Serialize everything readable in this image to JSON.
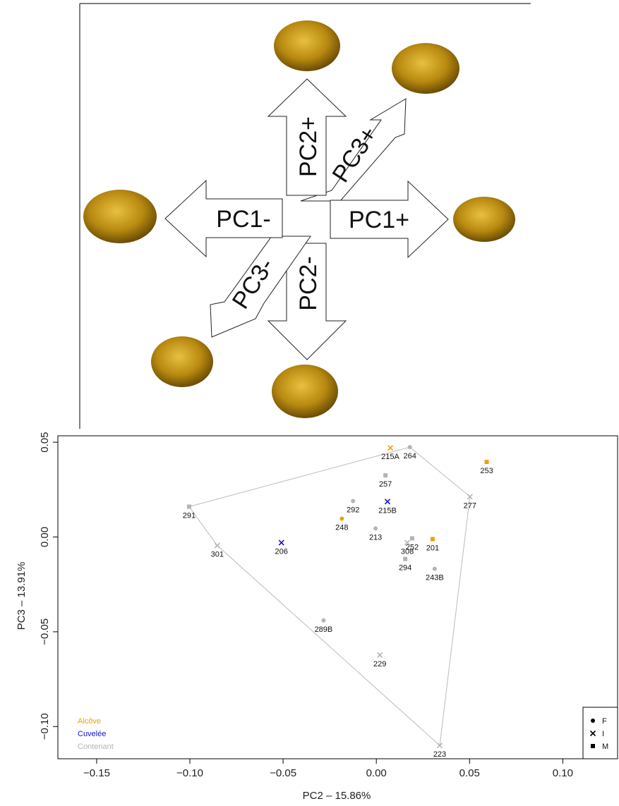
{
  "diagram": {
    "arrows": [
      "PC2+",
      "PC3+",
      "PC1-",
      "PC1+",
      "PC3-",
      "PC2-"
    ]
  },
  "chart_data": {
    "type": "scatter",
    "x_label": "PC2 – 15.86%",
    "y_label": "PC3 – 13.91%",
    "xlim": [
      -0.1708,
      0.1294
    ],
    "ylim": [
      -0.117,
      0.0534
    ],
    "xticks": [
      {
        "value": -0.15,
        "label": "−0.15"
      },
      {
        "value": -0.1,
        "label": "−0.10"
      },
      {
        "value": -0.05,
        "label": "−0.05"
      },
      {
        "value": 0,
        "label": "0.00"
      },
      {
        "value": 0.05,
        "label": "0.05"
      },
      {
        "value": 0.1,
        "label": "0.10"
      }
    ],
    "yticks": [
      {
        "value": -0.1,
        "label": "−0.10"
      },
      {
        "value": -0.05,
        "label": "−0.05"
      },
      {
        "value": 0,
        "label": "0.00"
      },
      {
        "value": 0.05,
        "label": "0.05"
      }
    ],
    "shape_legend": [
      {
        "name": "F",
        "marker": "circle"
      },
      {
        "name": "I",
        "marker": "cross"
      },
      {
        "name": "M",
        "marker": "square"
      }
    ],
    "series": [
      {
        "name": "Alcôve",
        "color": "#f0a000",
        "convex_hull": false,
        "labels": [
          "215A",
          "253",
          "248",
          "201"
        ],
        "shapes": [
          "I",
          "M",
          "F",
          "M"
        ],
        "x": [
          0.0075,
          0.0592,
          -0.0185,
          0.0302
        ],
        "values": [
          0.047,
          0.0396,
          0.0097,
          -0.0011
        ]
      },
      {
        "name": "Cuvelée",
        "color": "#1010d0",
        "convex_hull": false,
        "labels": [
          "215B",
          "206"
        ],
        "shapes": [
          "I",
          "I"
        ],
        "x": [
          0.006,
          -0.0509
        ],
        "values": [
          0.0187,
          -0.003
        ]
      },
      {
        "name": "Contenant",
        "color": "#b4b4b4",
        "convex_hull": true,
        "labels": [
          "264",
          "257",
          "277",
          "291",
          "292",
          "213",
          "252",
          "308",
          "301",
          "294",
          "243B",
          "289B",
          "229",
          "223"
        ],
        "shapes": [
          "F",
          "M",
          "I",
          "M",
          "F",
          "F",
          "M",
          "I",
          "I",
          "M",
          "F",
          "F",
          "I",
          "I"
        ],
        "x": [
          0.018,
          0.0049,
          0.0502,
          -0.1004,
          -0.0125,
          -0.0004,
          0.0192,
          0.0166,
          -0.0853,
          0.0155,
          0.0313,
          -0.0283,
          0.0019,
          0.034
        ],
        "values": [
          0.0474,
          0.0325,
          0.0213,
          0.016,
          0.019,
          0.0045,
          -0.0007,
          -0.003,
          -0.0045,
          -0.0116,
          -0.0168,
          -0.044,
          -0.0623,
          -0.11
        ]
      }
    ]
  }
}
